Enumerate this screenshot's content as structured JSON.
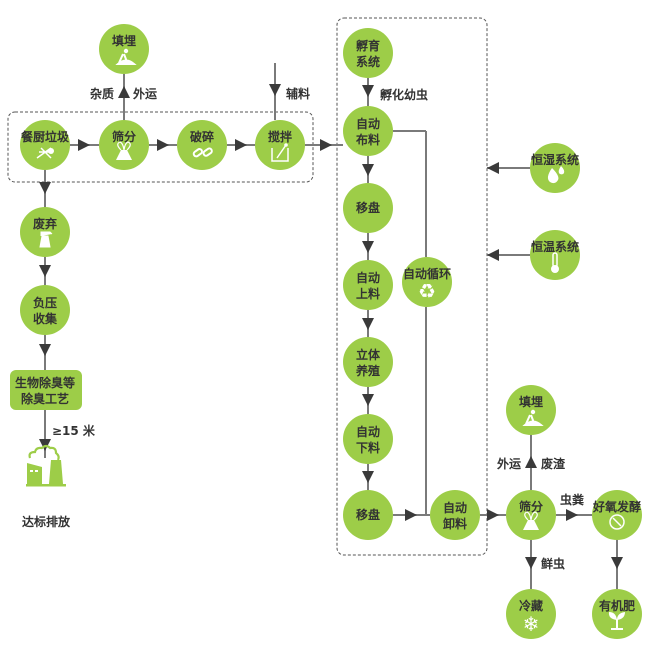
{
  "colors": {
    "node_fill": "#9dcd48",
    "arrow": "#3a3a3a",
    "line": "#7a7a7a",
    "text": "#333333"
  },
  "nodes": {
    "landfill_top": {
      "lines": [
        "填埋"
      ],
      "icon": "worker-digging-icon"
    },
    "food_waste": {
      "lines": [
        "餐厨垃圾"
      ],
      "icon": "food-scraps-icon"
    },
    "screening_1": {
      "lines": [
        "筛分"
      ],
      "icon": "sieve-icon"
    },
    "crushing": {
      "lines": [
        "破碎"
      ],
      "icon": "chain-link-icon"
    },
    "mixing": {
      "lines": [
        "搅拌"
      ],
      "icon": "mixer-icon"
    },
    "discard": {
      "lines": [
        "废弃"
      ],
      "icon": "spray-bottle-icon"
    },
    "negative_pressure": {
      "lines": [
        "负压",
        "收集"
      ]
    },
    "deodorize": {
      "lines": [
        "生物除臭等",
        "除臭工艺"
      ]
    },
    "incubation": {
      "lines": [
        "孵育",
        "系统"
      ]
    },
    "auto_spread": {
      "lines": [
        "自动",
        "布料"
      ]
    },
    "tray_move_1": {
      "lines": [
        "移盘"
      ]
    },
    "auto_load": {
      "lines": [
        "自动",
        "上料"
      ]
    },
    "vertical_breeding": {
      "lines": [
        "立体",
        "养殖"
      ]
    },
    "auto_unload_feed": {
      "lines": [
        "自动",
        "下料"
      ]
    },
    "tray_move_2": {
      "lines": [
        "移盘"
      ]
    },
    "auto_cycle": {
      "lines": [
        "自动循环"
      ],
      "icon": "recycle-icon"
    },
    "auto_discharge": {
      "lines": [
        "自动",
        "卸料"
      ]
    },
    "humidity": {
      "lines": [
        "恒湿系统"
      ],
      "icon": "water-drops-icon"
    },
    "temperature": {
      "lines": [
        "恒温系统"
      ],
      "icon": "thermometer-icon"
    },
    "screening_2": {
      "lines": [
        "筛分"
      ],
      "icon": "sieve-icon"
    },
    "landfill_bottom": {
      "lines": [
        "填埋"
      ],
      "icon": "worker-digging-icon"
    },
    "aerobic": {
      "lines": [
        "好氧发酵"
      ],
      "icon": "fermenter-icon"
    },
    "cold_storage": {
      "lines": [
        "冷藏"
      ],
      "icon": "snowflake-icon"
    },
    "organic_fertilizer": {
      "lines": [
        "有机肥"
      ],
      "icon": "sprout-icon"
    }
  },
  "labels": {
    "impurities": "杂质",
    "transport_out_1": "外运",
    "auxiliary": "辅料",
    "hatch_larvae": "孵化幼虫",
    "height": "≥15 米",
    "emission": "达标排放",
    "transport_out_2": "外运",
    "residue": "废渣",
    "frass": "虫粪",
    "fresh_larvae": "鲜虫"
  }
}
